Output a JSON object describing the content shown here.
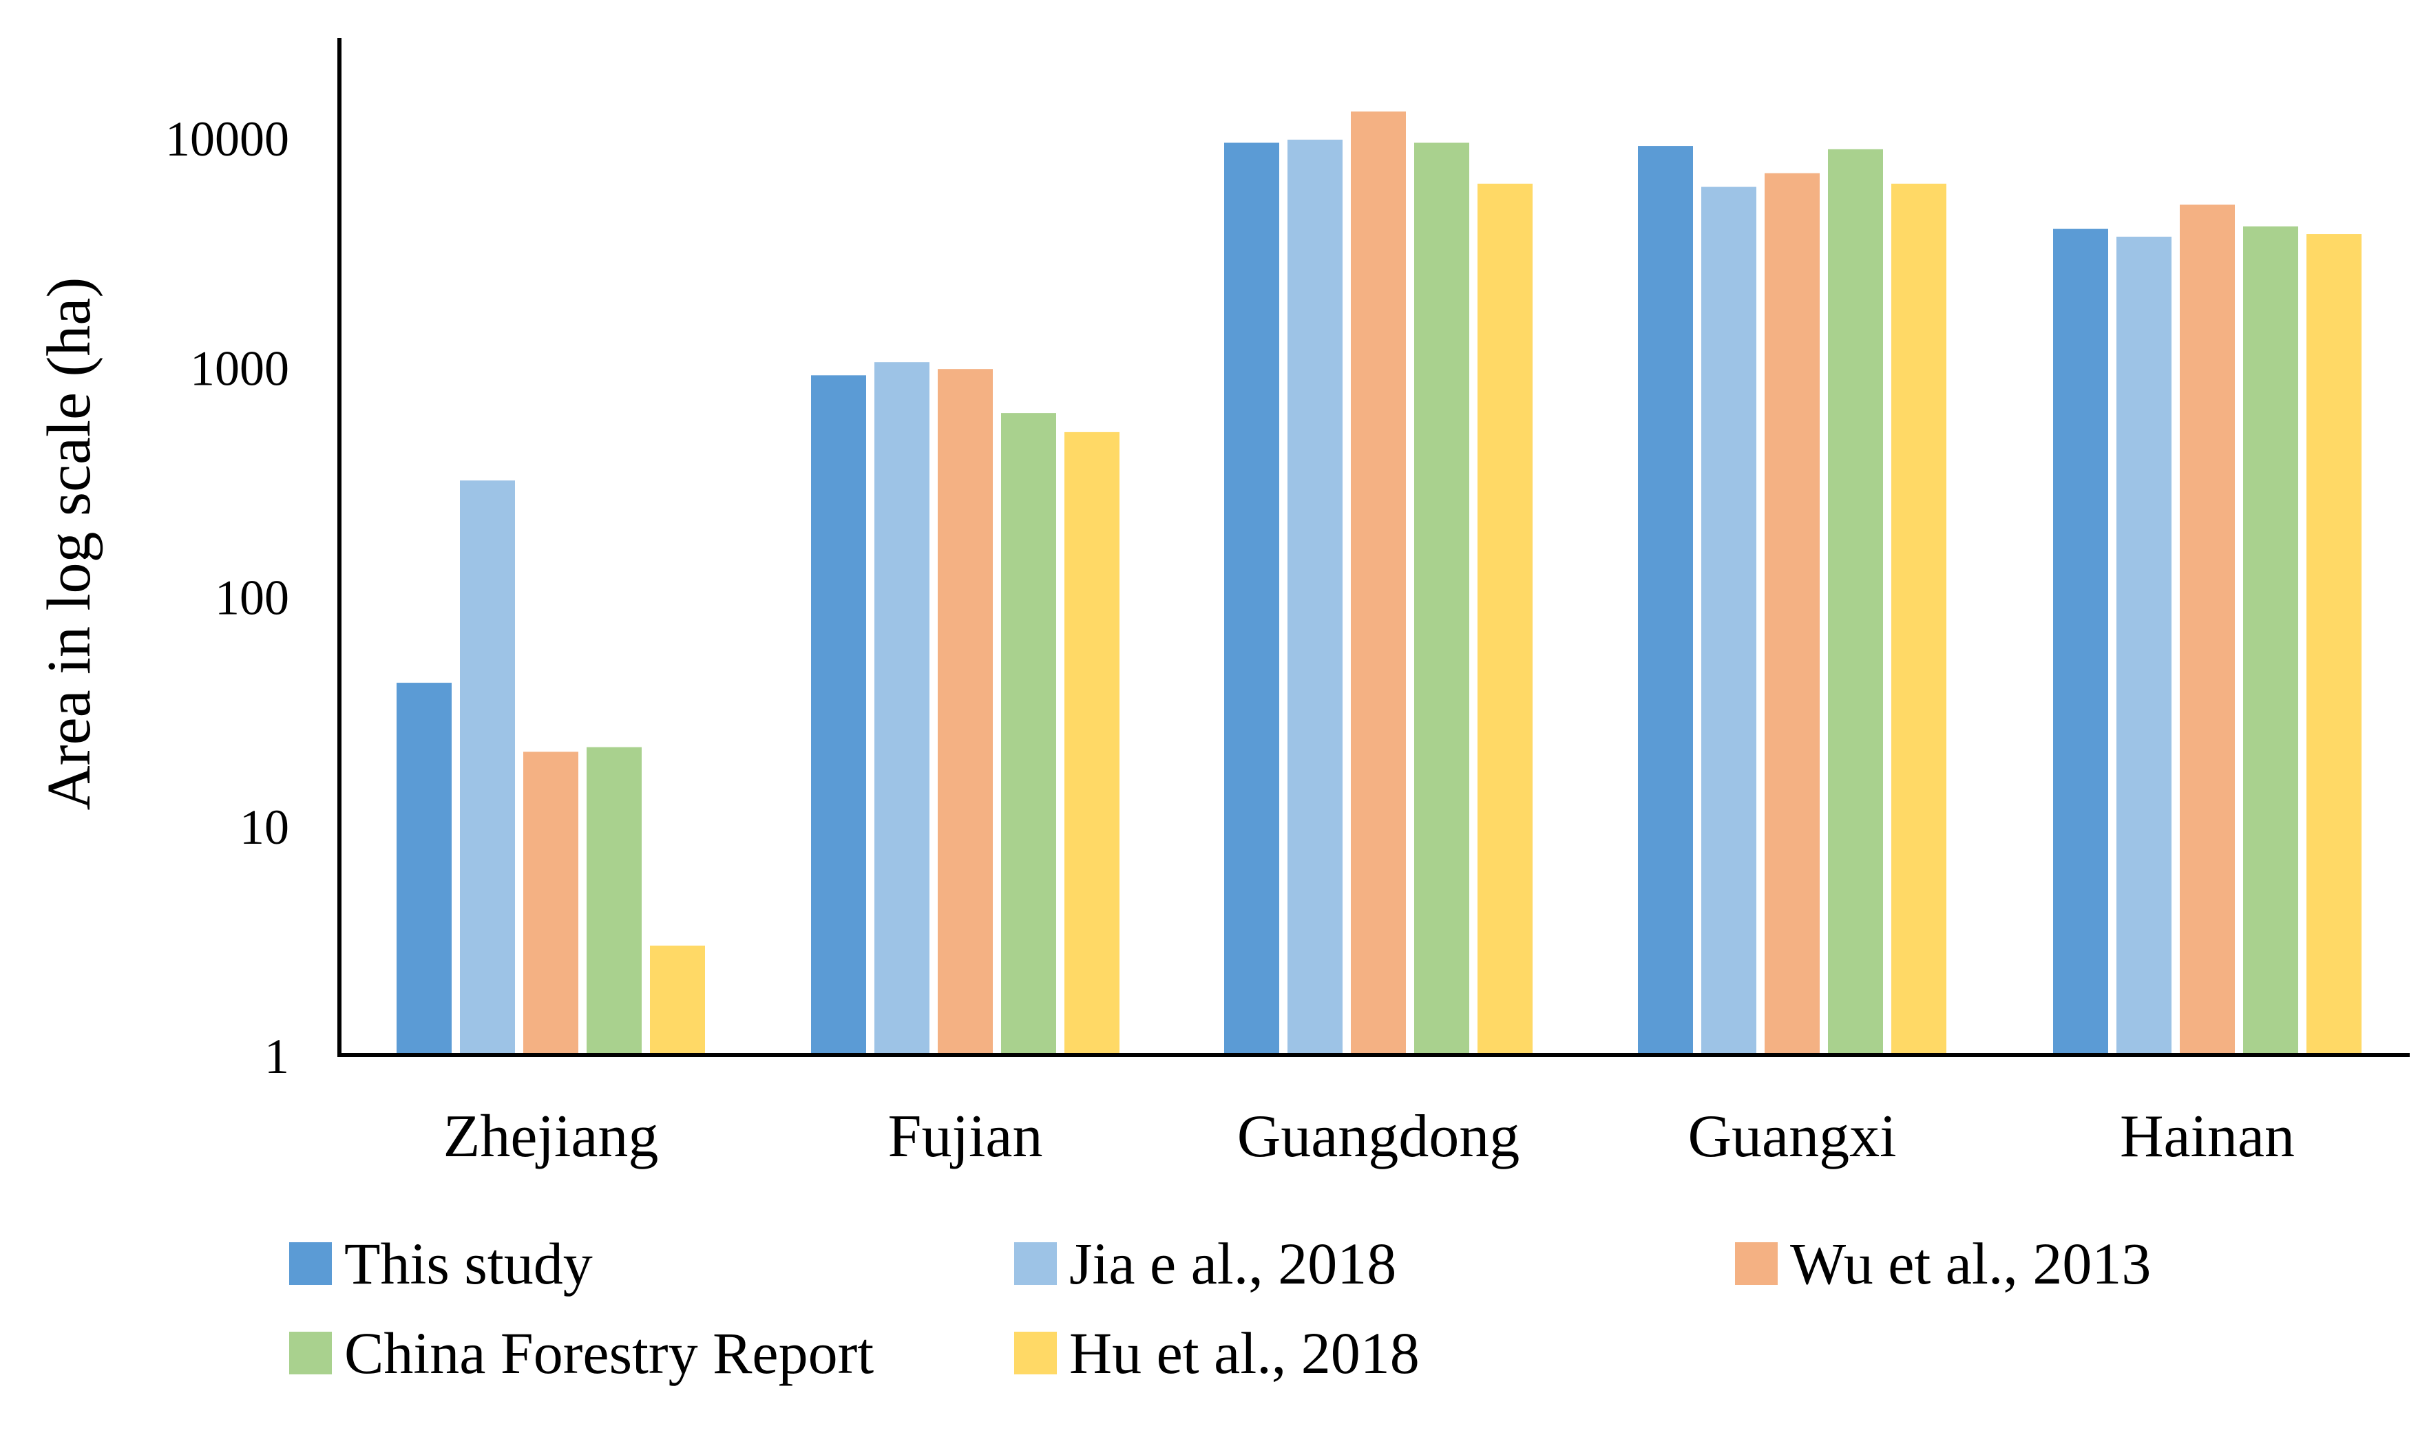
{
  "chart_data": {
    "type": "bar",
    "title": "",
    "xlabel": "",
    "ylabel": "Area in log scale (ha)",
    "yscale": "log",
    "ylim": [
      1,
      20000
    ],
    "yticks": [
      "1",
      "10",
      "100",
      "1000",
      "10000"
    ],
    "grid": false,
    "legend_position": "bottom",
    "categories": [
      "Zhejiang",
      "Fujian",
      "Guangdong",
      "Guangxi",
      "Hainan"
    ],
    "series": [
      {
        "name": "This study",
        "color": "#5b9bd5",
        "values": [
          42,
          920,
          9500,
          9200,
          4000
        ]
      },
      {
        "name": "Jia e al., 2018",
        "color": "#9dc3e6",
        "values": [
          320,
          1050,
          9800,
          6100,
          3700
        ]
      },
      {
        "name": "Wu et al., 2013",
        "color": "#f4b183",
        "values": [
          21,
          980,
          13000,
          7000,
          5100
        ]
      },
      {
        "name": "China Forestry Report",
        "color": "#a9d18e",
        "values": [
          22,
          630,
          9500,
          8900,
          4100
        ]
      },
      {
        "name": "Hu et al., 2018",
        "color": "#ffd966",
        "values": [
          3,
          520,
          6300,
          6300,
          3800
        ]
      }
    ]
  }
}
